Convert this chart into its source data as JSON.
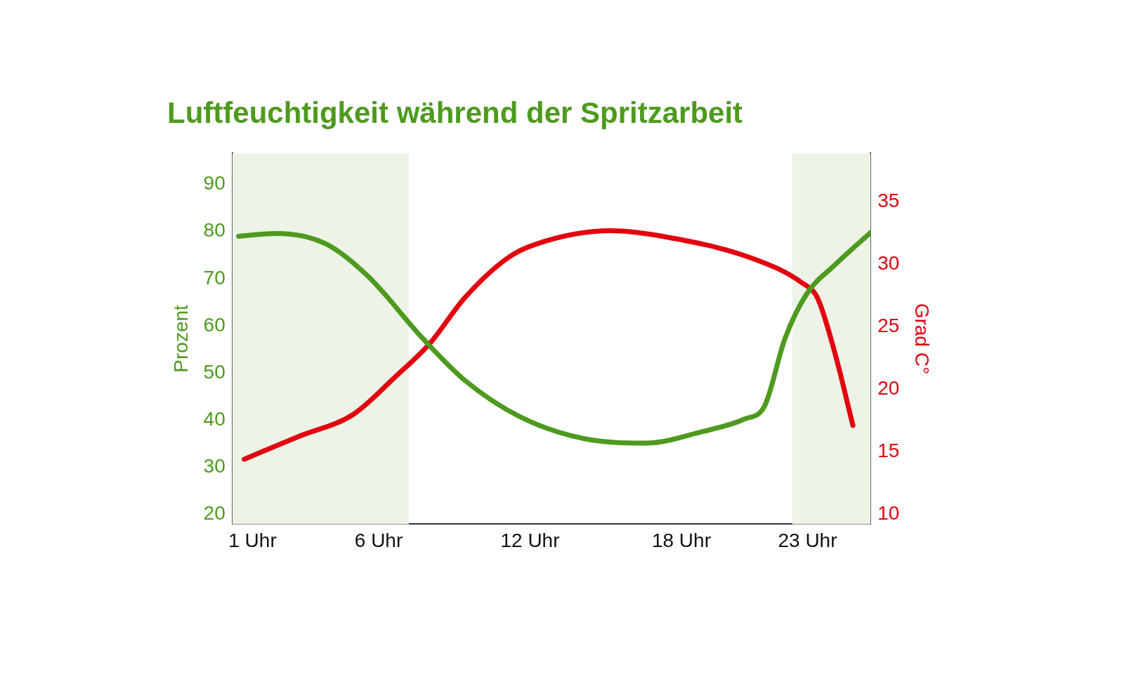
{
  "chart_data": {
    "type": "line",
    "title": "Luftfeuchtigkeit während der Spritzarbeit",
    "ylabel": "Prozent",
    "y2label": "Grad C°",
    "marker": "none",
    "xlim": [
      0.2,
      25.5
    ],
    "xticks": [
      {
        "value": 1,
        "label": "1 Uhr"
      },
      {
        "value": 6,
        "label": "6 Uhr"
      },
      {
        "value": 12,
        "label": "12 Uhr"
      },
      {
        "value": 18,
        "label": "18 Uhr"
      },
      {
        "value": 23,
        "label": "23 Uhr"
      }
    ],
    "ylim": [
      17.9,
      96.6
    ],
    "yticks": [
      20,
      30,
      40,
      50,
      60,
      70,
      80,
      90
    ],
    "y2lim": [
      9.2,
      38.9
    ],
    "y2ticks": [
      10,
      15,
      20,
      25,
      30,
      35
    ],
    "bands": [
      {
        "axis": "x",
        "from": 0.2,
        "to": 7.2,
        "color": "#edf3e6"
      },
      {
        "axis": "x",
        "from": 22.4,
        "to": 25.5,
        "color": "#edf3e6"
      }
    ],
    "series": [
      {
        "color": "#4e9a1e",
        "axis": "y",
        "x": [
          0.45,
          1.97,
          3.9,
          5.56,
          7.77,
          9.4,
          11.6,
          14.1,
          16.6,
          18.8,
          20.5,
          21.3,
          22.1,
          22.96,
          24.1,
          25.5
        ],
        "values": [
          79,
          79.6,
          77.4,
          70.6,
          57.2,
          48.5,
          40.7,
          36.1,
          35.1,
          37.5,
          40.2,
          43,
          57.2,
          66.7,
          73,
          79.8
        ]
      },
      {
        "color": "#e3000f",
        "axis": "y2",
        "x": [
          0.67,
          2.8,
          5.0,
          6.66,
          8.04,
          9.4,
          11.1,
          12.2,
          15.2,
          17.4,
          20.8,
          22.8,
          23.4,
          24.1,
          24.8
        ],
        "values": [
          14.4,
          16.2,
          18.0,
          21.0,
          23.7,
          27.3,
          30.5,
          31.6,
          32.7,
          32.2,
          30.5,
          28.5,
          27.3,
          22.8,
          17.1
        ]
      }
    ]
  }
}
